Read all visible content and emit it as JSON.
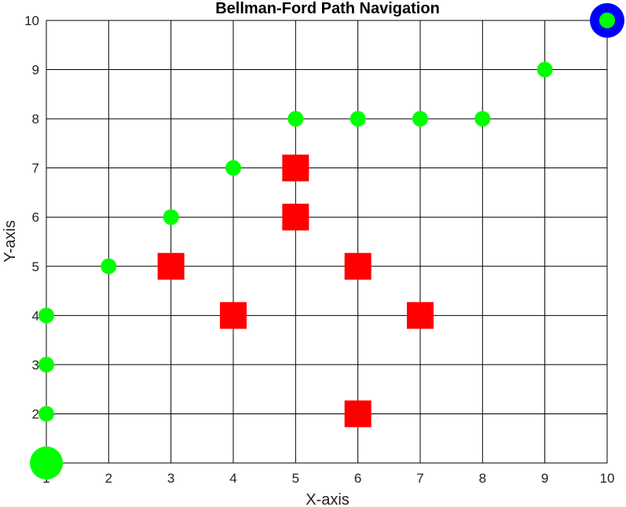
{
  "chart_data": {
    "type": "scatter",
    "title": "Bellman-Ford Path Navigation",
    "xlabel": "X-axis",
    "ylabel": "Y-axis",
    "xlim": [
      1,
      10
    ],
    "ylim": [
      1,
      10
    ],
    "xticks": [
      "1",
      "2",
      "3",
      "4",
      "5",
      "6",
      "7",
      "8",
      "9",
      "10"
    ],
    "yticks": [
      "1",
      "2",
      "3",
      "4",
      "5",
      "6",
      "7",
      "8",
      "9",
      "10"
    ],
    "grid": true,
    "path": {
      "color": "#00ff00",
      "points": [
        [
          1,
          2
        ],
        [
          1,
          3
        ],
        [
          1,
          4
        ],
        [
          2,
          5
        ],
        [
          3,
          6
        ],
        [
          4,
          7
        ],
        [
          5,
          8
        ],
        [
          6,
          8
        ],
        [
          7,
          8
        ],
        [
          8,
          8
        ],
        [
          9,
          9
        ]
      ]
    },
    "start": {
      "x": 1,
      "y": 1,
      "color": "#00ff00"
    },
    "goal": {
      "x": 10,
      "y": 10,
      "ring_color": "#0000ff",
      "center_color": "#00ff00"
    },
    "obstacles": {
      "color": "#ff0000",
      "points": [
        [
          5,
          7
        ],
        [
          5,
          6
        ],
        [
          3,
          5
        ],
        [
          6,
          5
        ],
        [
          4,
          4
        ],
        [
          7,
          4
        ],
        [
          6,
          2
        ]
      ]
    }
  }
}
